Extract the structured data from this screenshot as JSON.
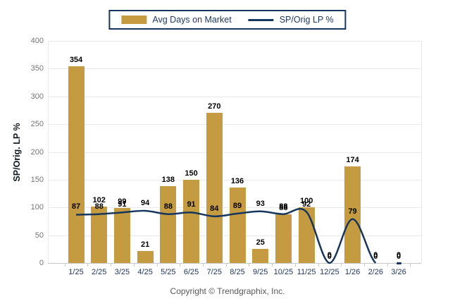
{
  "chart_data": {
    "type": "bar",
    "subtype": "bar-line-combo",
    "title": "",
    "categories": [
      "1/25",
      "2/25",
      "3/25",
      "4/25",
      "5/25",
      "6/25",
      "7/25",
      "8/25",
      "9/25",
      "10/25",
      "11/25",
      "12/25",
      "1/26",
      "2/26",
      "3/26"
    ],
    "series": [
      {
        "name": "Avg Days on Market",
        "type": "bar",
        "color": "#C49B41",
        "values": [
          354,
          102,
          99,
          21,
          138,
          150,
          270,
          136,
          25,
          88,
          100,
          0,
          174,
          0,
          0
        ]
      },
      {
        "name": "SP/Orig LP %",
        "type": "line",
        "color": "#17365D",
        "values": [
          87,
          88,
          91,
          94,
          88,
          91,
          84,
          89,
          93,
          88,
          92,
          0,
          79,
          0,
          0
        ]
      }
    ],
    "xlabel": "",
    "ylabel": "SP/Orig. LP %",
    "ylim": [
      0,
      400
    ],
    "yticks": [
      0,
      50,
      100,
      150,
      200,
      250,
      300,
      350,
      400
    ],
    "grid": "horizontal",
    "legend_position": "top-center",
    "line_draw_count": 14
  },
  "legend": {
    "items": [
      {
        "label": "Avg Days on Market"
      },
      {
        "label": "SP/Orig LP %"
      }
    ]
  },
  "footer": {
    "copyright": "Copyright © Trendgraphix, Inc."
  },
  "colors": {
    "background": "#FFFFFF",
    "bar": "#C49B41",
    "line": "#17365D",
    "grid_line": "#EAEAEA",
    "axis_line": "#C9C9C9",
    "x_tick_label": "#1F3864",
    "y_tick_label": "#757575",
    "data_label": "#000000",
    "legend_border": "#17365D",
    "legend_text": "#1F3864",
    "copyright_text": "#595959"
  }
}
